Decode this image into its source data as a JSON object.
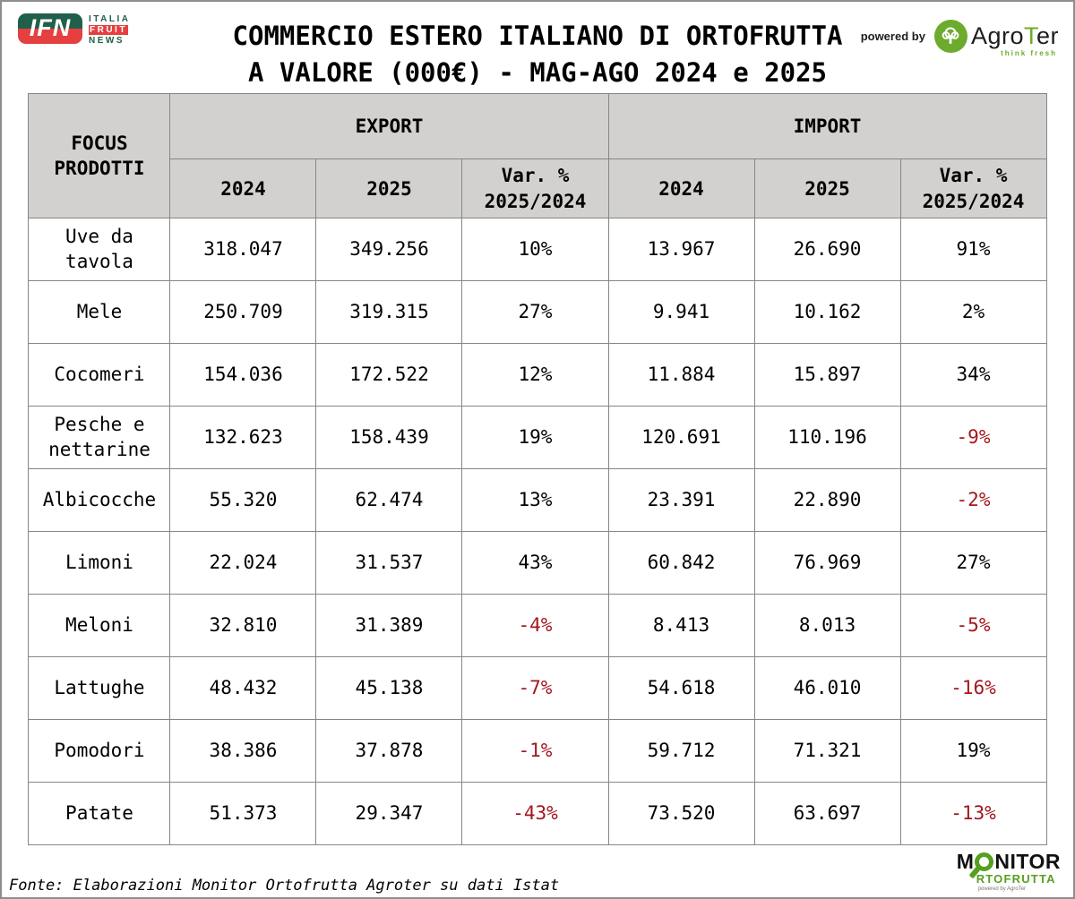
{
  "brand": {
    "ifn": {
      "acronym": "IFN",
      "line1": "ITALIA",
      "line2": "FRUIT",
      "line3": "NEWS"
    },
    "powered_by": "powered by",
    "agroter": {
      "name_pre": "Agro",
      "name_t": "T",
      "name_post": "er",
      "tagline": "think fresh"
    }
  },
  "title": {
    "line1": "COMMERCIO ESTERO ITALIANO DI ORTOFRUTTA",
    "line2": "A VALORE (000€) - MAG-AGO 2024 e 2025"
  },
  "table": {
    "corner_header": "FOCUS\nPRODOTTI",
    "group_headers": [
      "EXPORT",
      "IMPORT"
    ],
    "year_headers": [
      "2024",
      "2025"
    ],
    "var_header": "Var. %\n2025/2024",
    "rows": [
      {
        "product": "Uve da tavola",
        "export_2024": "318.047",
        "export_2025": "349.256",
        "export_var": "10%",
        "import_2024": "13.967",
        "import_2025": "26.690",
        "import_var": "91%"
      },
      {
        "product": "Mele",
        "export_2024": "250.709",
        "export_2025": "319.315",
        "export_var": "27%",
        "import_2024": "9.941",
        "import_2025": "10.162",
        "import_var": "2%"
      },
      {
        "product": "Cocomeri",
        "export_2024": "154.036",
        "export_2025": "172.522",
        "export_var": "12%",
        "import_2024": "11.884",
        "import_2025": "15.897",
        "import_var": "34%"
      },
      {
        "product": "Pesche e nettarine",
        "export_2024": "132.623",
        "export_2025": "158.439",
        "export_var": "19%",
        "import_2024": "120.691",
        "import_2025": "110.196",
        "import_var": "-9%"
      },
      {
        "product": "Albicocche",
        "export_2024": "55.320",
        "export_2025": "62.474",
        "export_var": "13%",
        "import_2024": "23.391",
        "import_2025": "22.890",
        "import_var": "-2%"
      },
      {
        "product": "Limoni",
        "export_2024": "22.024",
        "export_2025": "31.537",
        "export_var": "43%",
        "import_2024": "60.842",
        "import_2025": "76.969",
        "import_var": "27%"
      },
      {
        "product": "Meloni",
        "export_2024": "32.810",
        "export_2025": "31.389",
        "export_var": "-4%",
        "import_2024": "8.413",
        "import_2025": "8.013",
        "import_var": "-5%"
      },
      {
        "product": "Lattughe",
        "export_2024": "48.432",
        "export_2025": "45.138",
        "export_var": "-7%",
        "import_2024": "54.618",
        "import_2025": "46.010",
        "import_var": "-16%"
      },
      {
        "product": "Pomodori",
        "export_2024": "38.386",
        "export_2025": "37.878",
        "export_var": "-1%",
        "import_2024": "59.712",
        "import_2025": "71.321",
        "import_var": "19%"
      },
      {
        "product": "Patate",
        "export_2024": "51.373",
        "export_2025": "29.347",
        "export_var": "-43%",
        "import_2024": "73.520",
        "import_2025": "63.697",
        "import_var": "-13%"
      }
    ]
  },
  "footer": {
    "source": "Fonte: Elaborazioni Monitor Ortofrutta Agroter su dati Istat"
  },
  "monitor_logo": {
    "line1_pre": "M",
    "line1_post": "NITOR",
    "line2": "RTOFRUTTA",
    "sub": "powered by AgroTer"
  },
  "colors": {
    "negative_value": "#a4161f",
    "header_background": "#d3d1cf",
    "table_border": "#868686",
    "agroter_green": "#6cab2d",
    "monitor_green": "#56a01f",
    "ifn_green": "#20604a",
    "ifn_red": "#e5403f"
  },
  "chart_data": {
    "type": "table",
    "title": "COMMERCIO ESTERO ITALIANO DI ORTOFRUTTA A VALORE (000€) - MAG-AGO 2024 e 2025",
    "unit": "000€ (thousands of euros)",
    "period": "MAG-AGO 2024 e 2025",
    "columns": [
      "FOCUS PRODOTTI",
      "EXPORT 2024",
      "EXPORT 2025",
      "EXPORT Var. % 2025/2024",
      "IMPORT 2024",
      "IMPORT 2025",
      "IMPORT Var. % 2025/2024"
    ],
    "rows": [
      [
        "Uve da tavola",
        318047,
        349256,
        10,
        13967,
        26690,
        91
      ],
      [
        "Mele",
        250709,
        319315,
        27,
        9941,
        10162,
        2
      ],
      [
        "Cocomeri",
        154036,
        172522,
        12,
        11884,
        15897,
        34
      ],
      [
        "Pesche e nettarine",
        132623,
        158439,
        19,
        120691,
        110196,
        -9
      ],
      [
        "Albicocche",
        55320,
        62474,
        13,
        23391,
        22890,
        -2
      ],
      [
        "Limoni",
        22024,
        31537,
        43,
        60842,
        76969,
        27
      ],
      [
        "Meloni",
        32810,
        31389,
        -4,
        8413,
        8013,
        -5
      ],
      [
        "Lattughe",
        48432,
        45138,
        -7,
        54618,
        46010,
        -16
      ],
      [
        "Pomodori",
        38386,
        37878,
        -1,
        59712,
        71321,
        19
      ],
      [
        "Patate",
        51373,
        29347,
        -43,
        73520,
        63697,
        -13
      ]
    ],
    "source": "Fonte: Elaborazioni Monitor Ortofrutta Agroter su dati Istat",
    "notes": "Negative Var. % values shown in dark red (#a4161f); var columns in percent"
  }
}
